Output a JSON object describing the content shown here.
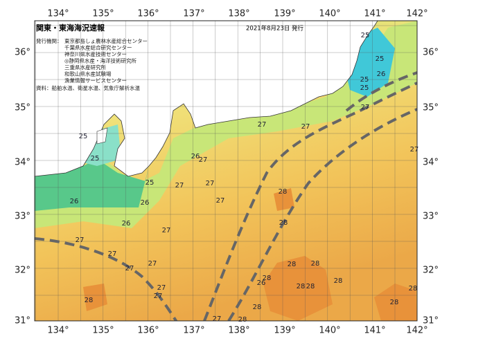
{
  "header": {
    "title": "関東・東海海況速報",
    "date": "2021年8月23日 発行"
  },
  "agencies": {
    "label": "発行機関：",
    "items": [
      "東京都島しょ農林水産総合センター",
      "千葉県水産総合研究センター",
      "神奈川県水産技術センター",
      "◎静岡県水産・海洋技術研究所",
      "三重県水産研究所",
      "和歌山県水産試験場",
      "漁業情報サービスセンター"
    ]
  },
  "source": "資料：船舶水温、衛星水温、気象庁解析水温",
  "lon_ticks": [
    "134°",
    "135°",
    "136°",
    "137°",
    "138°",
    "139°",
    "140°",
    "141°",
    "142°"
  ],
  "lat_ticks": [
    "36°",
    "35°",
    "34°",
    "33°",
    "32°",
    "31°"
  ],
  "isotherm_labels": [
    25,
    25,
    26,
    26,
    26,
    25,
    27,
    26,
    27,
    27,
    27,
    27,
    27,
    27,
    27,
    27,
    27,
    27,
    28,
    27,
    28,
    28,
    26,
    28,
    28,
    28,
    28,
    28,
    28,
    28,
    28,
    27,
    27,
    27,
    27,
    25,
    25,
    25,
    25,
    26,
    28,
    28
  ]
}
